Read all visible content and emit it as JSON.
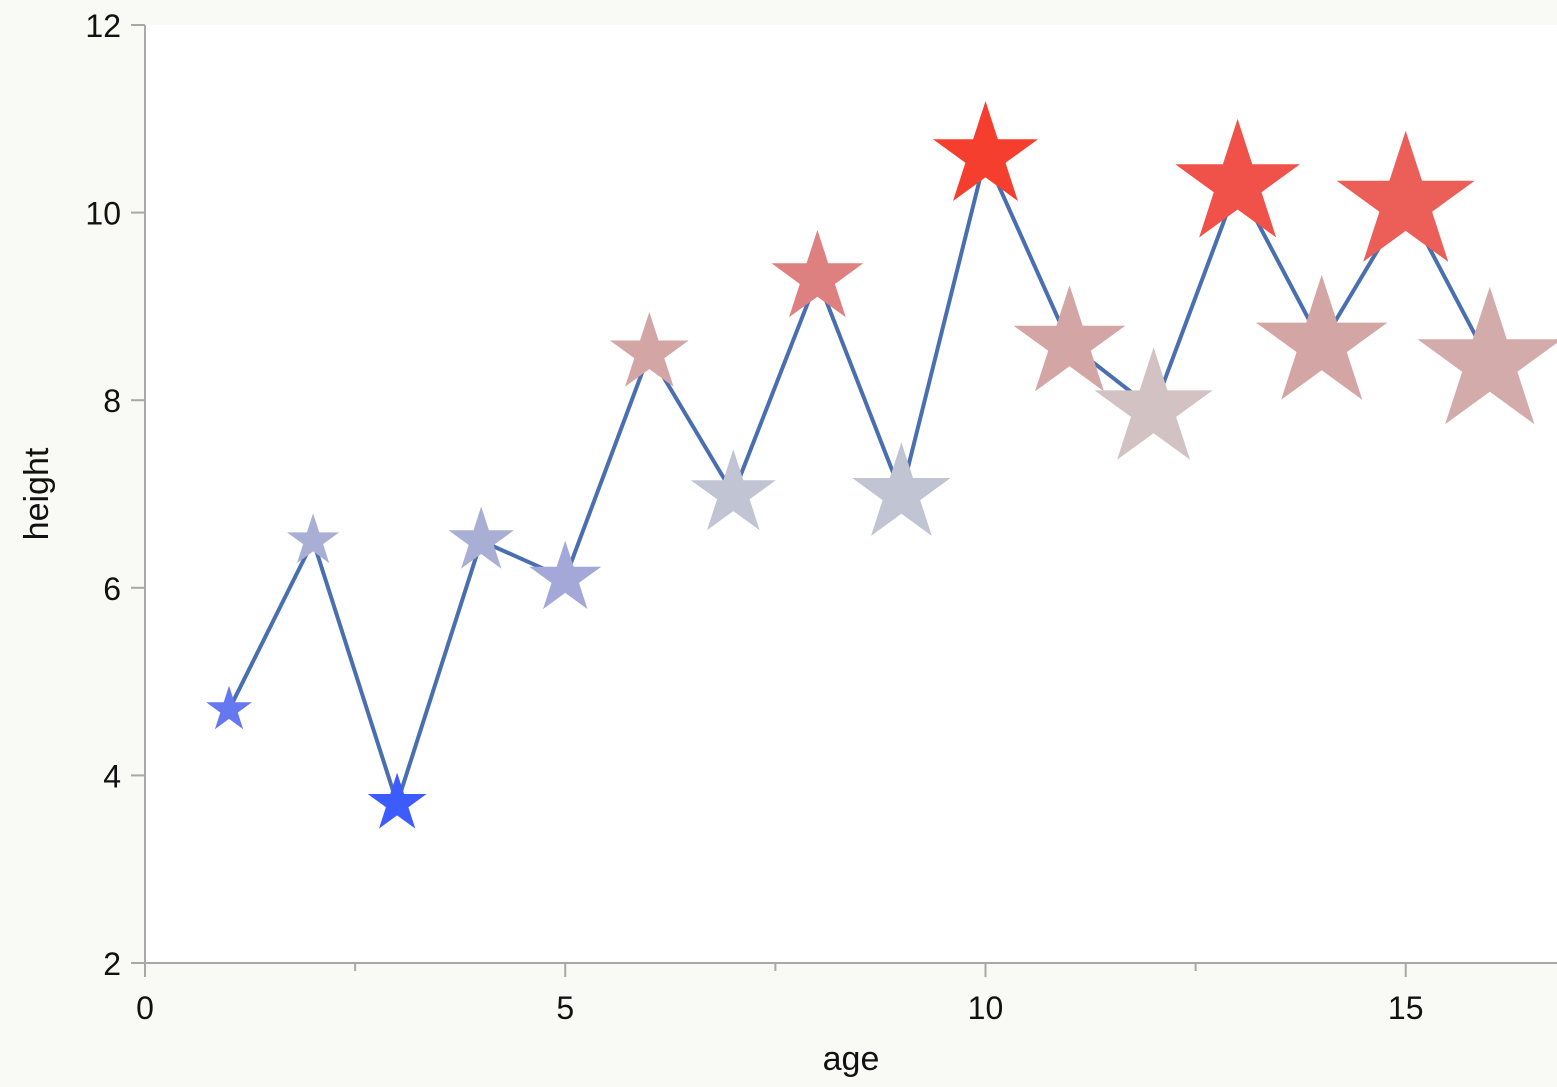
{
  "chart_data": {
    "type": "scatter",
    "title": "",
    "xlabel": "age",
    "ylabel": "height",
    "xlim": [
      0,
      16.8
    ],
    "ylim": [
      2,
      12
    ],
    "x_ticks": [
      0,
      5,
      10,
      15
    ],
    "x_minor_ticks": [
      2.5,
      7.5,
      12.5
    ],
    "y_ticks": [
      2,
      4,
      6,
      8,
      10,
      12
    ],
    "grid": false,
    "legend": "none",
    "marker": "star",
    "line_color": "#4a6fb0",
    "background": "#ffffff",
    "points": [
      {
        "x": 1,
        "y": 4.7,
        "color": "#6678f0"
      },
      {
        "x": 2,
        "y": 6.5,
        "color": "#a9aed4"
      },
      {
        "x": 3,
        "y": 3.7,
        "color": "#3d5cff"
      },
      {
        "x": 4,
        "y": 6.5,
        "color": "#a9aed4"
      },
      {
        "x": 5,
        "y": 6.1,
        "color": "#a3a8d8"
      },
      {
        "x": 6,
        "y": 8.5,
        "color": "#d3a5a5"
      },
      {
        "x": 7,
        "y": 7.0,
        "color": "#c1c4d2"
      },
      {
        "x": 8,
        "y": 9.3,
        "color": "#df8080"
      },
      {
        "x": 9,
        "y": 7.0,
        "color": "#c1c4d2"
      },
      {
        "x": 10,
        "y": 10.6,
        "color": "#f53e2d"
      },
      {
        "x": 11,
        "y": 8.6,
        "color": "#d3a5a5"
      },
      {
        "x": 12,
        "y": 7.9,
        "color": "#d2c2c3"
      },
      {
        "x": 13,
        "y": 10.3,
        "color": "#f05148"
      },
      {
        "x": 14,
        "y": 8.6,
        "color": "#d3a5a5"
      },
      {
        "x": 15,
        "y": 10.1,
        "color": "#ec5f58"
      },
      {
        "x": 16,
        "y": 8.4,
        "color": "#d3abab"
      }
    ]
  }
}
